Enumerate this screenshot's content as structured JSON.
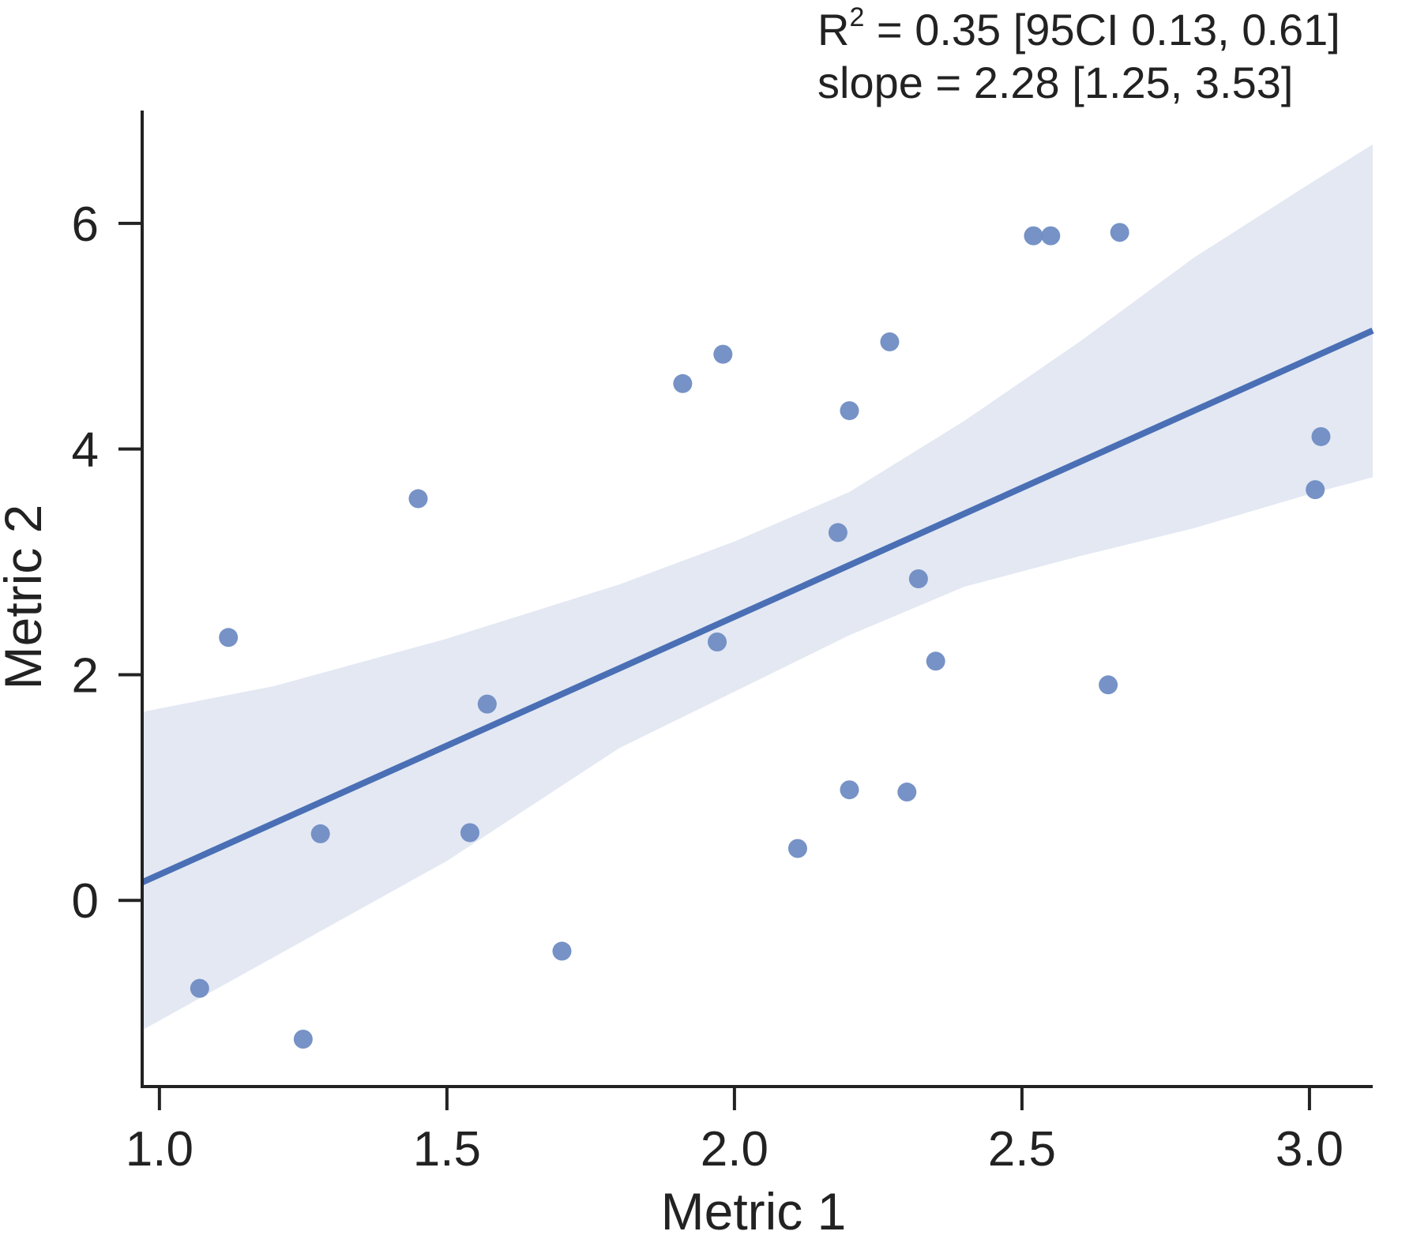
{
  "chart_data": {
    "type": "scatter",
    "xlabel": "Metric 1",
    "ylabel": "Metric 2",
    "xlim": [
      0.97,
      3.11
    ],
    "ylim": [
      -1.65,
      7.0
    ],
    "x_ticks": [
      1.0,
      1.5,
      2.0,
      2.5,
      3.0
    ],
    "x_tick_labels": [
      "1.0",
      "1.5",
      "2.0",
      "2.5",
      "3.0"
    ],
    "y_ticks": [
      0,
      2,
      4,
      6
    ],
    "y_tick_labels": [
      "0",
      "2",
      "4",
      "6"
    ],
    "grid": false,
    "annotation": {
      "r2_symbol": "R",
      "r2_superscript": "2",
      "r2_rest": " = 0.35 [95CI 0.13, 0.61]",
      "slope": "slope = 2.28 [1.25, 3.53]"
    },
    "points": [
      {
        "x": 1.07,
        "y": -0.78
      },
      {
        "x": 1.12,
        "y": 2.33
      },
      {
        "x": 1.25,
        "y": -1.23
      },
      {
        "x": 1.28,
        "y": 0.59
      },
      {
        "x": 1.45,
        "y": 3.56
      },
      {
        "x": 1.54,
        "y": 0.6
      },
      {
        "x": 1.57,
        "y": 1.74
      },
      {
        "x": 1.7,
        "y": -0.45
      },
      {
        "x": 1.91,
        "y": 4.58
      },
      {
        "x": 1.97,
        "y": 2.29
      },
      {
        "x": 1.98,
        "y": 4.84
      },
      {
        "x": 2.11,
        "y": 0.46
      },
      {
        "x": 2.18,
        "y": 3.26
      },
      {
        "x": 2.2,
        "y": 0.98
      },
      {
        "x": 2.2,
        "y": 4.34
      },
      {
        "x": 2.27,
        "y": 4.95
      },
      {
        "x": 2.3,
        "y": 0.96
      },
      {
        "x": 2.32,
        "y": 2.85
      },
      {
        "x": 2.35,
        "y": 2.12
      },
      {
        "x": 2.52,
        "y": 5.89
      },
      {
        "x": 2.55,
        "y": 5.89
      },
      {
        "x": 2.65,
        "y": 1.91
      },
      {
        "x": 2.67,
        "y": 5.92
      },
      {
        "x": 3.01,
        "y": 3.64
      },
      {
        "x": 3.02,
        "y": 4.11
      }
    ],
    "regression": {
      "x0": 0.97,
      "y0": 0.16,
      "x1": 3.11,
      "y1": 5.05
    },
    "ci_band": {
      "x": [
        0.97,
        1.2,
        1.5,
        1.8,
        2.0,
        2.2,
        2.4,
        2.6,
        2.8,
        3.0,
        3.11
      ],
      "upper": [
        1.67,
        1.9,
        2.32,
        2.8,
        3.18,
        3.62,
        4.25,
        4.95,
        5.7,
        6.35,
        6.7
      ],
      "lower": [
        -1.15,
        -0.5,
        0.35,
        1.35,
        1.85,
        2.35,
        2.78,
        3.05,
        3.3,
        3.6,
        3.75
      ]
    },
    "colors": {
      "points": "#6f8cc3",
      "line": "#4a6fb5",
      "band": "#e3e8f3",
      "axis": "#222222"
    }
  }
}
